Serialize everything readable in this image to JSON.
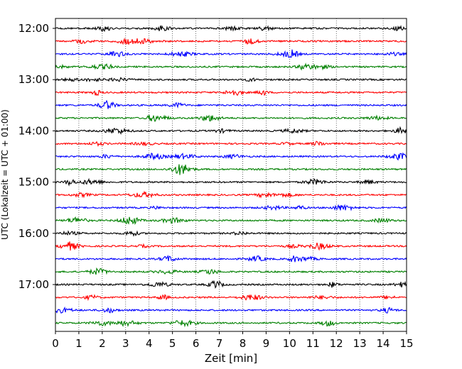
{
  "chart_data": {
    "type": "line",
    "title": "",
    "xlabel": "Zeit  [min]",
    "ylabel": "UTC (Lokalzeit = UTC + 01:00)",
    "xlim": [
      0,
      15
    ],
    "x_ticks": [
      "0",
      "1",
      "2",
      "3",
      "4",
      "5",
      "6",
      "7",
      "8",
      "9",
      "10",
      "11",
      "12",
      "13",
      "14",
      "15"
    ],
    "y_ticks": [
      "12:00",
      "13:00",
      "14:00",
      "15:00",
      "16:00",
      "17:00"
    ],
    "grid": "vertical-dotted",
    "rows_per_hour": 4,
    "row_minutes": 15,
    "start_time": "12:00",
    "row_count": 24,
    "trace_colors": [
      "#000000",
      "#ff0000",
      "#0000ff",
      "#008000"
    ]
  }
}
